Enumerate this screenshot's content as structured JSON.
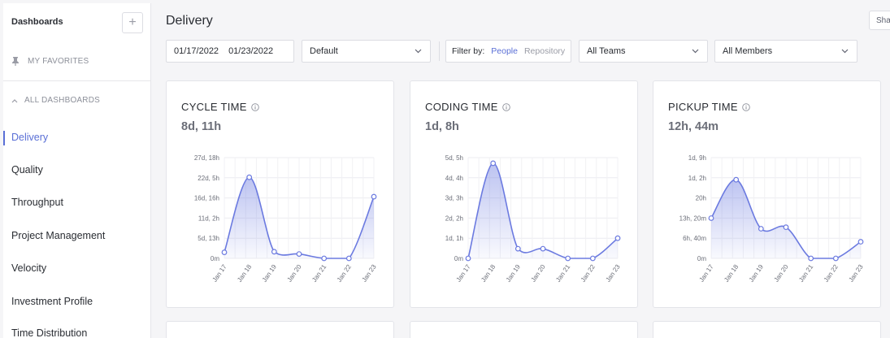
{
  "sidebar": {
    "header": "Dashboards",
    "add_label": "+",
    "favorites_label": "MY FAVORITES",
    "all_dashboards_label": "ALL DASHBOARDS",
    "items": [
      {
        "label": "Delivery"
      },
      {
        "label": "Quality"
      },
      {
        "label": "Throughput"
      },
      {
        "label": "Project Management"
      },
      {
        "label": "Velocity"
      },
      {
        "label": "Investment Profile"
      },
      {
        "label": "Time Distribution"
      }
    ]
  },
  "header": {
    "title": "Delivery",
    "share_label": "Sha"
  },
  "filters": {
    "date_start": "01/17/2022",
    "date_end": "01/23/2022",
    "preset": "Default",
    "filter_by_label": "Filter by:",
    "filter_people": "People",
    "filter_repository": "Repository",
    "teams": "All Teams",
    "members": "All Members"
  },
  "colors": {
    "accent": "#5a6fd6",
    "line": "#6b7ae0"
  },
  "chart_data": [
    {
      "type": "area",
      "title": "CYCLE TIME",
      "value": "8d, 11h",
      "x": [
        "Jan 17",
        "Jan 18",
        "Jan 19",
        "Jan 20",
        "Jan 21",
        "Jan 22",
        "Jan 23"
      ],
      "y_ticks": [
        "0m",
        "5d, 13h",
        "11d, 2h",
        "16d, 16h",
        "22d, 5h",
        "27d, 18h"
      ],
      "values_hours": [
        40,
        536,
        44,
        29,
        0,
        0,
        408
      ],
      "ylim_hours": [
        0,
        666
      ]
    },
    {
      "type": "area",
      "title": "CODING TIME",
      "value": "1d, 8h",
      "x": [
        "Jan 17",
        "Jan 18",
        "Jan 19",
        "Jan 20",
        "Jan 21",
        "Jan 22",
        "Jan 23"
      ],
      "y_ticks": [
        "0m",
        "1d, 1h",
        "2d, 2h",
        "3d, 3h",
        "4d, 4h",
        "5d, 5h"
      ],
      "values_hours": [
        0,
        118,
        12,
        12,
        0,
        0,
        25
      ],
      "ylim_hours": [
        0,
        125
      ]
    },
    {
      "type": "area",
      "title": "PICKUP TIME",
      "value": "12h, 44m",
      "x": [
        "Jan 17",
        "Jan 18",
        "Jan 19",
        "Jan 20",
        "Jan 21",
        "Jan 22",
        "Jan 23"
      ],
      "y_ticks": [
        "0m",
        "6h, 40m",
        "13h, 20m",
        "20h",
        "1d, 2h",
        "1d, 9h"
      ],
      "values_hours": [
        13.3,
        26,
        9.8,
        10.3,
        0,
        0,
        5.5
      ],
      "ylim_hours": [
        0,
        33.3
      ]
    }
  ]
}
